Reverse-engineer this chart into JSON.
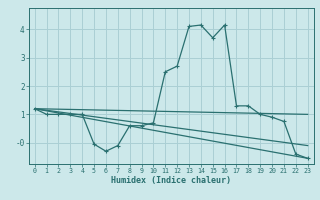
{
  "xlabel": "Humidex (Indice chaleur)",
  "xlim": [
    -0.5,
    23.5
  ],
  "ylim": [
    -0.75,
    4.75
  ],
  "yticks": [
    0,
    1,
    2,
    3,
    4
  ],
  "ytick_labels": [
    "-0",
    "1",
    "2",
    "3",
    "4"
  ],
  "xticks": [
    0,
    1,
    2,
    3,
    4,
    5,
    6,
    7,
    8,
    9,
    10,
    11,
    12,
    13,
    14,
    15,
    16,
    17,
    18,
    19,
    20,
    21,
    22,
    23
  ],
  "bg_color": "#cce8ea",
  "grid_color": "#aacfd4",
  "line_color": "#2a7070",
  "line1_x": [
    0,
    1,
    2,
    3,
    4,
    5,
    6,
    7,
    8,
    9,
    10,
    11,
    12,
    13,
    14,
    15,
    16,
    17,
    18,
    19,
    20,
    21,
    22,
    23
  ],
  "line1_y": [
    1.2,
    1.0,
    1.0,
    1.0,
    1.0,
    -0.05,
    -0.3,
    -0.1,
    0.6,
    0.6,
    0.7,
    2.5,
    2.7,
    4.1,
    4.15,
    3.7,
    4.15,
    1.3,
    1.3,
    1.0,
    0.9,
    0.75,
    -0.4,
    -0.55
  ],
  "line2_x": [
    0,
    23
  ],
  "line2_y": [
    1.2,
    1.0
  ],
  "line3_x": [
    0,
    23
  ],
  "line3_y": [
    1.2,
    -0.55
  ],
  "line4_x": [
    0,
    23
  ],
  "line4_y": [
    1.2,
    -0.1
  ]
}
